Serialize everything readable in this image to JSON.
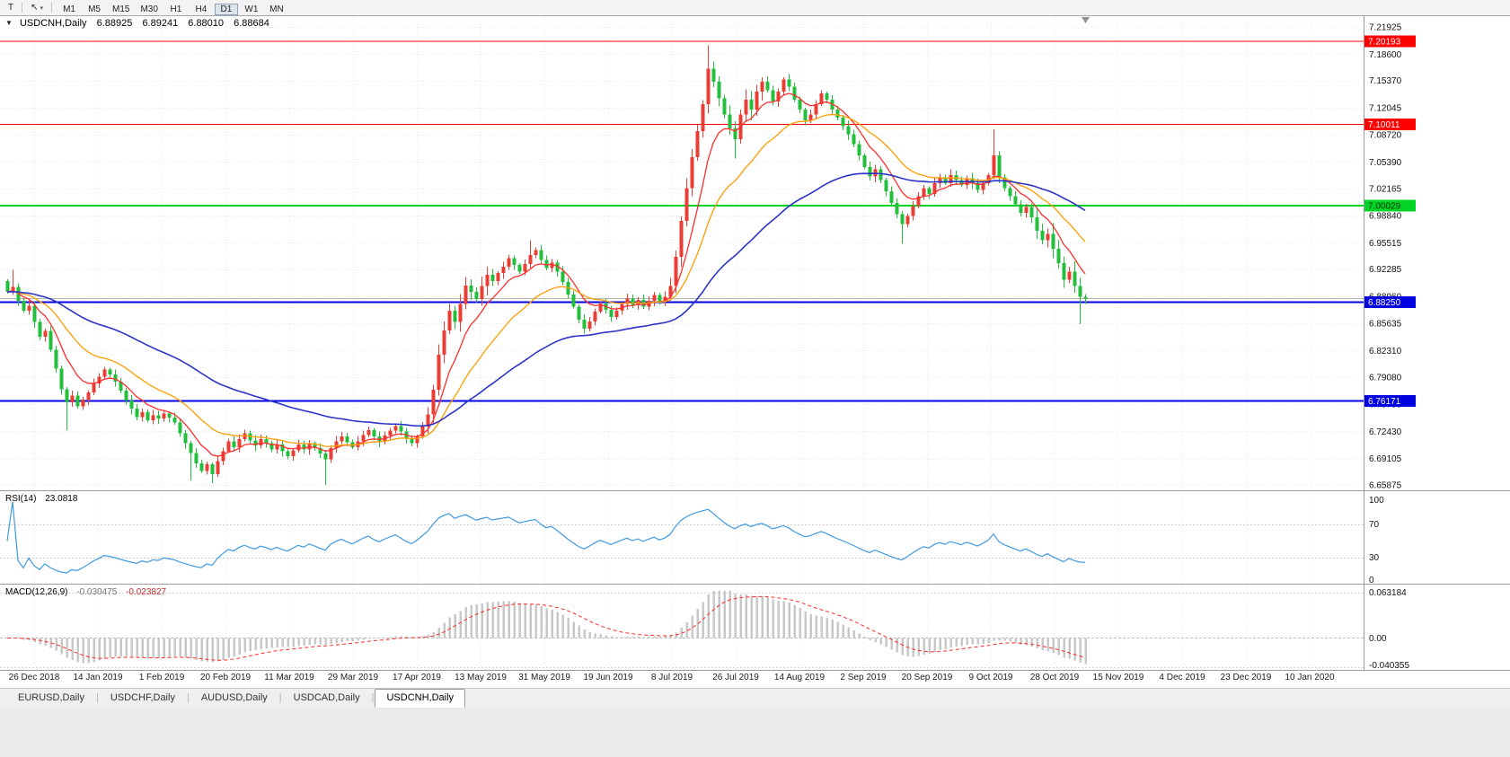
{
  "toolbar": {
    "t_label": "T",
    "pointer_icon": "↖",
    "chevron": "▾",
    "timeframes": [
      "M1",
      "M5",
      "M15",
      "M30",
      "H1",
      "H4",
      "D1",
      "W1",
      "MN"
    ],
    "active_timeframe": "D1"
  },
  "chart": {
    "title_arrow": "▼",
    "symbol": "USDCNH,Daily",
    "ohlc": {
      "open": "6.88925",
      "high": "6.89241",
      "low": "6.88010",
      "close": "6.88684"
    },
    "y_axis_labels": [
      "7.21925",
      "7.18600",
      "7.15370",
      "7.12045",
      "7.08720",
      "7.05390",
      "7.02165",
      "6.98840",
      "6.95515",
      "6.92285",
      "6.88960",
      "6.85635",
      "6.82310",
      "6.79080",
      "6.75755",
      "6.72430",
      "6.69105",
      "6.65875"
    ],
    "x_axis_labels": [
      "26 Dec 2018",
      "14 Jan 2019",
      "1 Feb 2019",
      "20 Feb 2019",
      "11 Mar 2019",
      "29 Mar 2019",
      "17 Apr 2019",
      "13 May 2019",
      "31 May 2019",
      "19 Jun 2019",
      "8 Jul 2019",
      "26 Jul 2019",
      "14 Aug 2019",
      "2 Sep 2019",
      "20 Sep 2019",
      "9 Oct 2019",
      "28 Oct 2019",
      "15 Nov 2019",
      "4 Dec 2019",
      "23 Dec 2019",
      "10 Jan 2020"
    ],
    "levels": [
      {
        "price": 7.20193,
        "label": "7.20193",
        "color": "#ff0000",
        "text": "#ffffff"
      },
      {
        "price": 7.10011,
        "label": "7.10011",
        "color": "#ff0000",
        "text": "#ffffff"
      },
      {
        "price": 7.00029,
        "label": "7.00029",
        "color": "#00d426",
        "text": "#00330a"
      },
      {
        "price": 6.8825,
        "label": "6.88250",
        "color": "#0000e0",
        "text": "#ffffff"
      },
      {
        "price": 6.76171,
        "label": "6.76171",
        "color": "#0000e0",
        "text": "#ffffff"
      }
    ]
  },
  "rsi": {
    "name": "RSI(14)",
    "value": "23.0818",
    "axis_labels": [
      "100",
      "70",
      "30",
      "0"
    ],
    "guide_levels": [
      70,
      30
    ]
  },
  "macd": {
    "name": "MACD(12,26,9)",
    "value_main": "-0.030475",
    "value_signal": "-0.023827",
    "axis_labels": [
      "0.063184",
      "0.00",
      "-0.040355"
    ]
  },
  "tabs": {
    "items": [
      "EURUSD,Daily",
      "USDCHF,Daily",
      "AUDUSD,Daily",
      "USDCAD,Daily",
      "USDCNH,Daily"
    ],
    "active_index": 4
  },
  "colors": {
    "candle_up": "#ea3d35",
    "candle_down": "#22bf3c",
    "ma_fast": "#ff2e2e",
    "ma_mid": "#ff9c00",
    "ma_slow": "#2a35c8",
    "rsi_line": "#3d9ae0",
    "macd_hist": "#c8c8c8",
    "macd_signal": "#ff2a2a",
    "current_price_line": "#b4b4b4",
    "grid": "#e9e9e9",
    "grid_vertical": "#ededed",
    "separator": "#9a9a9a"
  },
  "chart_data": {
    "type": "candlestick",
    "symbol": "USDCNH",
    "timeframe": "Daily",
    "ylim": [
      6.65875,
      7.21925
    ],
    "first_open": 6.908,
    "closes": [
      6.895,
      6.901,
      6.884,
      6.872,
      6.878,
      6.858,
      6.84,
      6.847,
      6.824,
      6.801,
      6.776,
      6.76,
      6.768,
      6.755,
      6.763,
      6.772,
      6.783,
      6.791,
      6.8,
      6.794,
      6.785,
      6.774,
      6.762,
      6.752,
      6.742,
      6.748,
      6.738,
      6.744,
      6.74,
      6.746,
      6.741,
      6.735,
      6.722,
      6.71,
      6.698,
      6.685,
      6.676,
      6.684,
      6.672,
      6.688,
      6.7,
      6.712,
      6.705,
      6.715,
      6.722,
      6.713,
      6.707,
      6.715,
      6.71,
      6.702,
      6.708,
      6.7,
      6.694,
      6.701,
      6.708,
      6.702,
      6.71,
      6.704,
      6.697,
      6.69,
      6.704,
      6.712,
      6.718,
      6.711,
      6.705,
      6.712,
      6.72,
      6.726,
      6.718,
      6.712,
      6.719,
      6.725,
      6.731,
      6.724,
      6.716,
      6.71,
      6.718,
      6.73,
      6.745,
      6.775,
      6.818,
      6.848,
      6.872,
      6.858,
      6.88,
      6.903,
      6.895,
      6.886,
      6.902,
      6.916,
      6.908,
      6.918,
      6.926,
      6.936,
      6.928,
      6.92,
      6.929,
      6.94,
      6.946,
      6.934,
      6.924,
      6.931,
      6.92,
      6.907,
      6.892,
      6.877,
      6.861,
      6.85,
      6.859,
      6.871,
      6.881,
      6.873,
      6.864,
      6.872,
      6.88,
      6.887,
      6.879,
      6.885,
      6.877,
      6.884,
      6.891,
      6.883,
      6.889,
      6.902,
      6.938,
      6.982,
      7.022,
      7.06,
      7.092,
      7.125,
      7.168,
      7.152,
      7.132,
      7.112,
      7.095,
      7.082,
      7.112,
      7.13,
      7.118,
      7.14,
      7.152,
      7.142,
      7.128,
      7.14,
      7.155,
      7.146,
      7.13,
      7.118,
      7.105,
      7.112,
      7.125,
      7.138,
      7.13,
      7.118,
      7.108,
      7.098,
      7.088,
      7.076,
      7.062,
      7.048,
      7.036,
      7.045,
      7.032,
      7.018,
      7.004,
      6.99,
      6.978,
      6.988,
      7.0,
      7.012,
      7.022,
      7.015,
      7.028,
      7.035,
      7.028,
      7.038,
      7.032,
      7.026,
      7.034,
      7.028,
      7.02,
      7.028,
      7.038,
      7.062,
      7.035,
      7.022,
      7.012,
      7.002,
      6.992,
      6.999,
      6.986,
      6.97,
      6.958,
      6.966,
      6.948,
      6.93,
      6.91,
      6.92,
      6.902,
      6.889,
      6.887
    ],
    "extremes": [
      {
        "i": 1,
        "high": 6.922
      },
      {
        "i": 11,
        "low": 6.726
      },
      {
        "i": 34,
        "low": 6.664
      },
      {
        "i": 38,
        "low": 6.661
      },
      {
        "i": 59,
        "low": 6.659
      },
      {
        "i": 97,
        "high": 6.958
      },
      {
        "i": 130,
        "high": 7.1966
      },
      {
        "i": 135,
        "low": 7.058
      },
      {
        "i": 166,
        "low": 6.954
      },
      {
        "i": 183,
        "high": 7.094
      },
      {
        "i": 199,
        "low": 6.8555
      }
    ],
    "last_candle": {
      "o": 6.88925,
      "h": 6.89241,
      "l": 6.8801,
      "c": 6.88684
    },
    "horizontal_levels": [
      7.20193,
      7.10011,
      7.00029,
      6.8825,
      6.76171
    ],
    "indicators": {
      "rsi": {
        "current": 23.0818,
        "axis_max": 100,
        "axis_min": 0,
        "guides": [
          70,
          30
        ]
      },
      "macd": {
        "current_macd": -0.030475,
        "current_signal": -0.023827,
        "axis_max": 0.063184,
        "axis_min": -0.040355
      }
    }
  }
}
